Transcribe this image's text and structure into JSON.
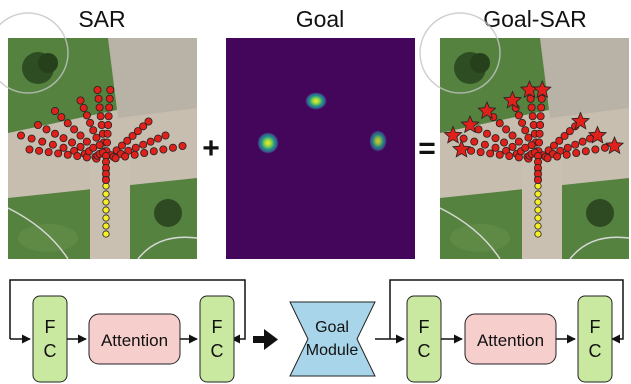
{
  "titles": {
    "sar": "SAR",
    "goal": "Goal",
    "goal_sar": "Goal-SAR"
  },
  "operators": {
    "plus": "+",
    "equals": "="
  },
  "pipeline": {
    "fc_line1": "F",
    "fc_line2": "C",
    "attention": "Attention",
    "goal_module_line1": "Goal",
    "goal_module_line2": "Module"
  },
  "colors": {
    "prediction_fill": "#e0201a",
    "history_fill": "#f3ee2a",
    "heatmap_bg": "#44065a",
    "fc_fill": "#c9e8a0",
    "attention_fill": "#f6cfcd",
    "goal_module_fill": "#a9d5ea"
  }
}
